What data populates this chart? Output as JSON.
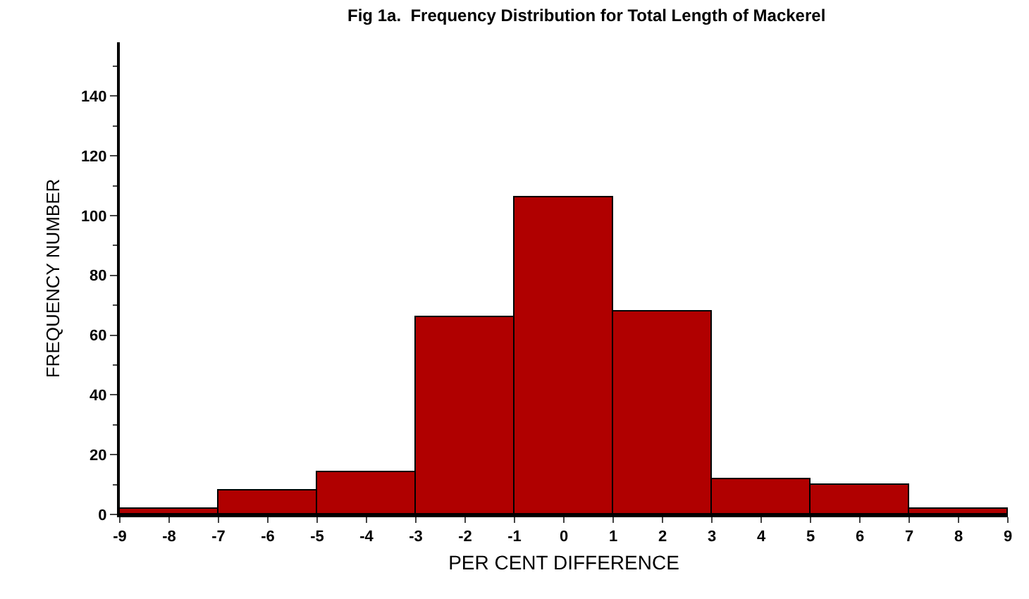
{
  "chart_data": {
    "type": "histogram",
    "title": "Fig 1a.  Frequency Distribution for Total Length of Mackerel",
    "xlabel": "PER CENT DIFFERENCE",
    "ylabel": "FREQUENCY NUMBER",
    "bins": [
      -9,
      -7,
      -5,
      -3,
      -1,
      1,
      3,
      5,
      7,
      9
    ],
    "values": [
      2,
      8,
      14,
      66,
      106,
      68,
      12,
      10,
      2
    ],
    "color": "#b00000",
    "xlim": [
      -9,
      9
    ],
    "xticks": [
      -9,
      -8,
      -7,
      -6,
      -5,
      -4,
      -3,
      -2,
      -1,
      0,
      1,
      2,
      3,
      4,
      5,
      6,
      7,
      8,
      9
    ],
    "ylim": [
      0,
      158
    ],
    "yticks": [
      0,
      20,
      40,
      60,
      80,
      100,
      120,
      140
    ],
    "grid": false,
    "legend": false
  }
}
